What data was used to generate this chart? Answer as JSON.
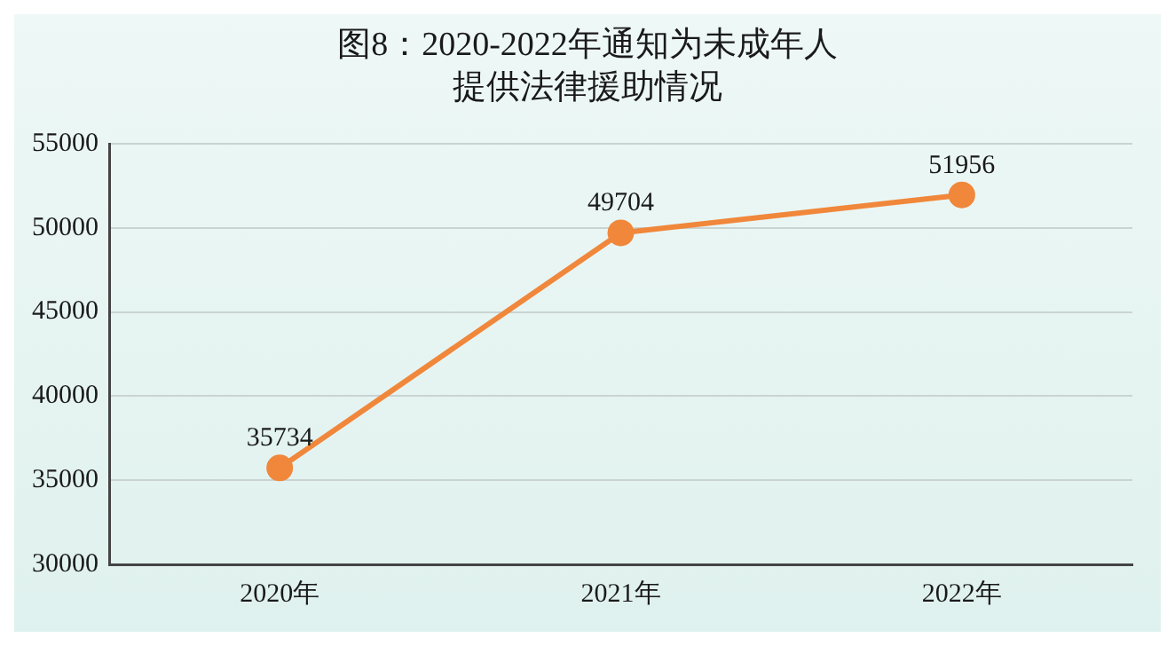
{
  "chart_data": {
    "type": "line",
    "title": "图8：2020-2022年通知为未成年人提供法律援助情况",
    "categories": [
      "2020年",
      "2021年",
      "2022年"
    ],
    "series": [
      {
        "color": "#f0873a",
        "values": [
          35734,
          49704,
          51956
        ]
      }
    ],
    "ylim": [
      30000,
      55000
    ],
    "yticks": [
      30000,
      35000,
      40000,
      45000,
      50000,
      55000
    ],
    "grid": "y",
    "marker": "circle",
    "line_style": "solid",
    "data_labels": true,
    "legend": false
  }
}
